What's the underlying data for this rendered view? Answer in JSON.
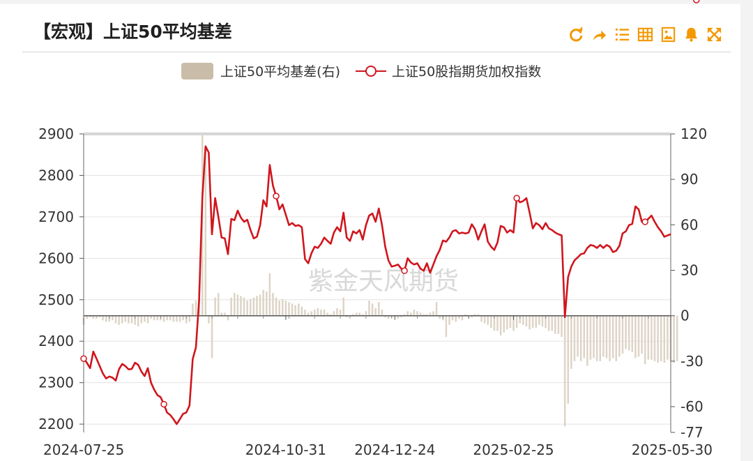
{
  "header": {
    "title": "【宏观】上证50平均基差",
    "toolbar": [
      "refresh-icon",
      "share-icon",
      "list-icon",
      "table-icon",
      "image-icon",
      "bell-icon",
      "expand-icon"
    ]
  },
  "colors": {
    "accent": "#f39800",
    "line": "#d0151d",
    "bar": "#c9bda9"
  },
  "watermark": "紫金天风期货",
  "chart_data": {
    "type": "line+bar",
    "legend": [
      {
        "name": "上证50平均基差(右)",
        "kind": "bar",
        "axis": "right"
      },
      {
        "name": "上证50股指期货加权指数",
        "kind": "line",
        "axis": "left"
      }
    ],
    "x_ticks": [
      "2024-07-25",
      "2024-10-31",
      "2024-12-24",
      "2025-02-25",
      "2025-05-30"
    ],
    "y_left": {
      "ticks": [
        2200,
        2300,
        2400,
        2500,
        2600,
        2700,
        2800,
        2900
      ],
      "range": [
        2180,
        2900
      ]
    },
    "y_right": {
      "ticks": [
        -77,
        -60,
        -30,
        0,
        30,
        60,
        90,
        120
      ],
      "range": [
        -77,
        120
      ]
    },
    "grid": true,
    "index_series": [
      2358,
      2348,
      2335,
      2375,
      2358,
      2340,
      2322,
      2310,
      2315,
      2312,
      2305,
      2332,
      2345,
      2340,
      2332,
      2333,
      2348,
      2343,
      2327,
      2316,
      2335,
      2300,
      2283,
      2270,
      2265,
      2248,
      2228,
      2222,
      2212,
      2200,
      2212,
      2225,
      2228,
      2245,
      2357,
      2385,
      2500,
      2745,
      2870,
      2855,
      2658,
      2745,
      2700,
      2650,
      2648,
      2610,
      2695,
      2692,
      2715,
      2698,
      2688,
      2693,
      2668,
      2648,
      2652,
      2680,
      2740,
      2725,
      2825,
      2775,
      2750,
      2718,
      2730,
      2705,
      2680,
      2685,
      2678,
      2680,
      2675,
      2598,
      2588,
      2612,
      2628,
      2625,
      2635,
      2650,
      2642,
      2635,
      2662,
      2675,
      2665,
      2710,
      2650,
      2642,
      2665,
      2660,
      2668,
      2645,
      2680,
      2703,
      2708,
      2688,
      2720,
      2680,
      2628,
      2595,
      2580,
      2582,
      2585,
      2575,
      2570,
      2600,
      2590,
      2585,
      2588,
      2575,
      2570,
      2588,
      2565,
      2585,
      2605,
      2620,
      2643,
      2640,
      2650,
      2665,
      2668,
      2660,
      2662,
      2660,
      2662,
      2682,
      2670,
      2645,
      2665,
      2682,
      2640,
      2628,
      2620,
      2638,
      2678,
      2675,
      2662,
      2668,
      2662,
      2745,
      2735,
      2738,
      2745,
      2710,
      2672,
      2685,
      2680,
      2670,
      2685,
      2672,
      2668,
      2662,
      2658,
      2655,
      2458,
      2555,
      2580,
      2595,
      2602,
      2610,
      2612,
      2625,
      2632,
      2630,
      2625,
      2632,
      2625,
      2632,
      2628,
      2615,
      2618,
      2630,
      2660,
      2665,
      2680,
      2683,
      2725,
      2718,
      2688,
      2688,
      2695,
      2703,
      2688,
      2675,
      2665,
      2652,
      2655,
      2658
    ],
    "basis_series": [
      -6,
      -2,
      -1,
      -2,
      -2,
      -1,
      -3,
      -4,
      -4,
      -3,
      -5,
      -6,
      -5,
      -4,
      -5,
      -5,
      -6,
      -7,
      -5,
      -4,
      -5,
      -2,
      -3,
      -3,
      -3,
      -4,
      -3,
      -3,
      -4,
      -4,
      -4,
      -3,
      -5,
      -4,
      8,
      10,
      20,
      120,
      110,
      -5,
      -28,
      12,
      15,
      2,
      2,
      -3,
      12,
      15,
      14,
      13,
      12,
      10,
      11,
      12,
      13,
      14,
      17,
      16,
      28,
      15,
      12,
      10,
      11,
      10,
      9,
      8,
      7,
      8,
      6,
      4,
      2,
      3,
      4,
      5,
      4,
      4,
      2,
      1,
      3,
      5,
      4,
      12,
      -1,
      -2,
      1,
      2,
      2,
      1,
      3,
      10,
      8,
      5,
      9,
      4,
      -1,
      -2,
      -1,
      0,
      -2,
      -1,
      1,
      3,
      2,
      4,
      3,
      2,
      1,
      1,
      2,
      3,
      9,
      -2,
      -3,
      -14,
      -6,
      -3,
      -4,
      -2,
      -3,
      1,
      -2,
      -1,
      1,
      1,
      -4,
      -5,
      -6,
      -8,
      -10,
      -10,
      -13,
      -11,
      -9,
      -8,
      -10,
      -8,
      -5,
      -6,
      -7,
      -9,
      -8,
      -8,
      -6,
      -7,
      -8,
      -10,
      -10,
      -12,
      -12,
      -14,
      -73,
      -58,
      -35,
      -30,
      -27,
      -30,
      -28,
      -33,
      -29,
      -28,
      -30,
      -30,
      -27,
      -28,
      -30,
      -28,
      -30,
      -27,
      -25,
      -22,
      -23,
      -24,
      -28,
      -27,
      -25,
      -32,
      -29,
      -29,
      -30,
      -31,
      -30,
      -31,
      -29,
      -30,
      -31,
      -30
    ],
    "markers": [
      0,
      25,
      60,
      100,
      135,
      175,
      191
    ]
  }
}
